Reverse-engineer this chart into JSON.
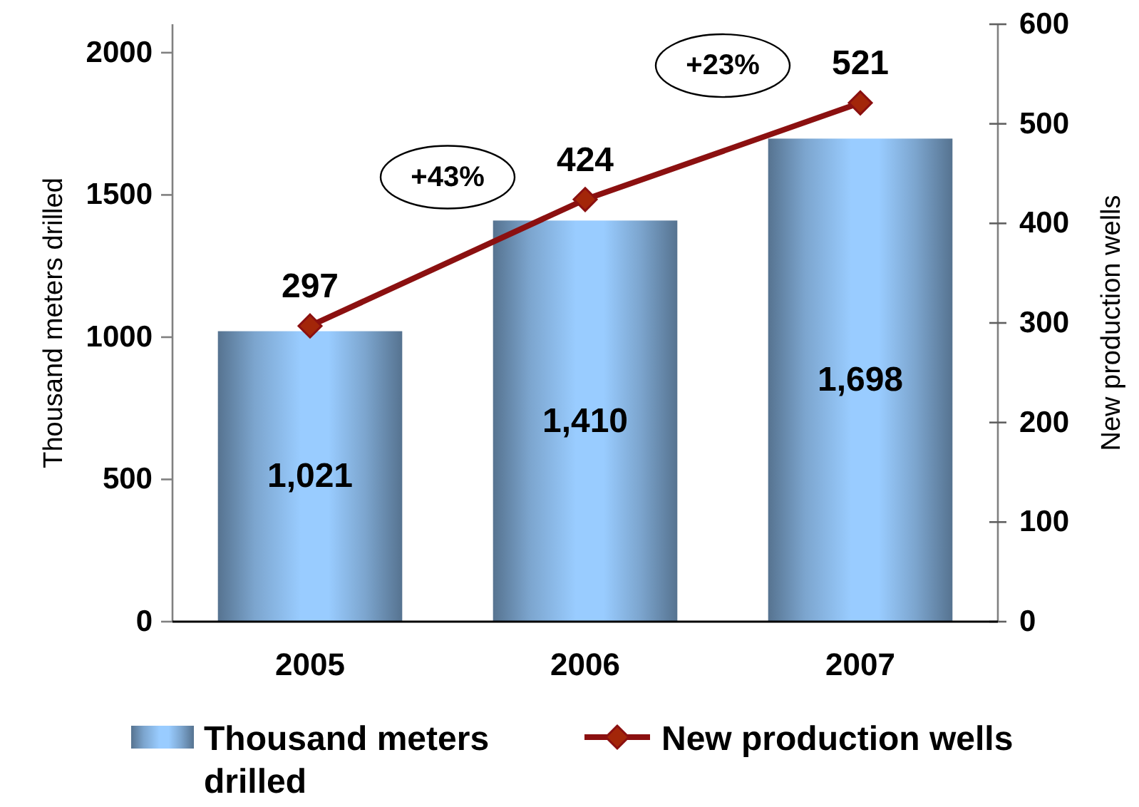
{
  "chart_data": {
    "type": "bar",
    "categories": [
      "2005",
      "2006",
      "2007"
    ],
    "series": [
      {
        "name": "Thousand meters drilled",
        "color": "#99ccff",
        "values": [
          1021,
          1410,
          1698
        ],
        "value_labels": [
          "1,021",
          "1,410",
          "1,698"
        ]
      },
      {
        "name": "New production wells",
        "type": "line",
        "axis": "y2",
        "color": "#8b1010",
        "values": [
          297,
          424,
          521
        ],
        "value_labels": [
          "297",
          "424",
          "521"
        ]
      }
    ],
    "ylabel": "Thousand meters drilled",
    "y2label": "New production wells",
    "ylim": [
      0,
      2100
    ],
    "yticks": [
      0,
      500,
      1000,
      1500,
      2000
    ],
    "y2lim": [
      0,
      600
    ],
    "y2ticks": [
      0,
      100,
      200,
      300,
      400,
      500,
      600
    ],
    "annotations": [
      "+43%",
      "+23%"
    ],
    "legend": "bottom",
    "marker": "diamond",
    "line_style": "solid"
  }
}
